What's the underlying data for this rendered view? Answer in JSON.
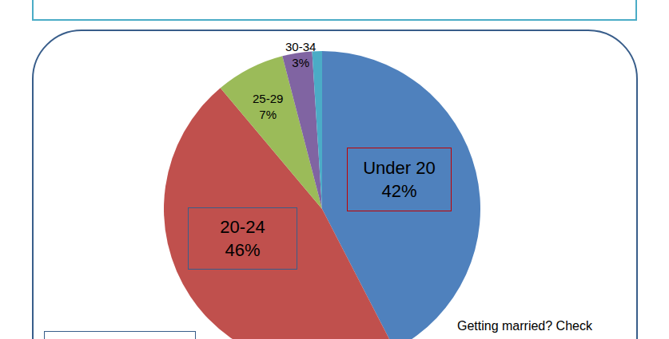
{
  "chart_data": {
    "type": "pie",
    "categories": [
      "Under 20",
      "20-24",
      "25-29",
      "30-34",
      null
    ],
    "values": [
      42,
      46,
      7,
      3,
      1
    ],
    "value_labels": [
      "42%",
      "46%",
      "7%",
      "3%",
      null
    ],
    "colors": [
      "#4f81bd",
      "#c0504d",
      "#9bbb59",
      "#8064a2",
      "#4bacc6"
    ],
    "data_labels": true,
    "annotations": [
      "Getting married? Check"
    ]
  }
}
